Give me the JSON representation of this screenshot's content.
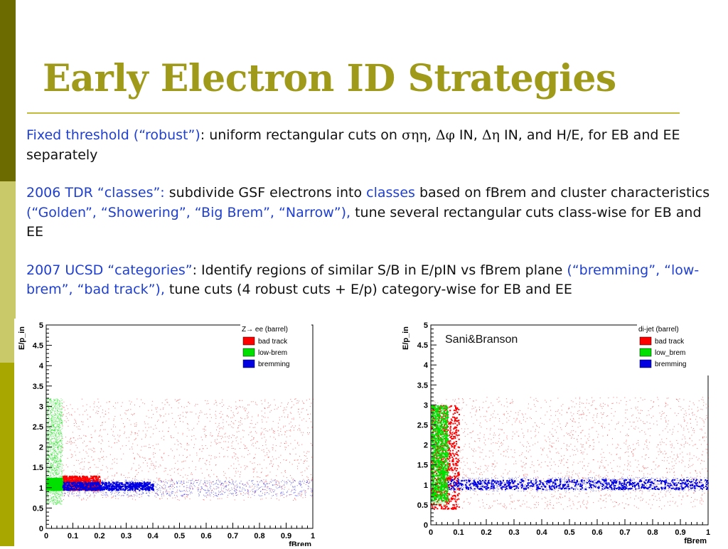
{
  "slide": {
    "title": "Early Electron ID Strategies",
    "paragraphs": [
      {
        "lead": "Fixed threshold (“robust”)",
        "text1": ":  uniform rectangular cuts on ",
        "sym1": "σηη",
        "sep1": ", ",
        "sym2": "Δφ",
        "text2": " IN, ",
        "sym3": "Δη",
        "text3": " IN, and H/E, for EB and EE separately"
      },
      {
        "lead": "2006 TDR “classes”:",
        "text1": "  subdivide GSF electrons into ",
        "kw": "classes",
        "text2": " based on fBrem and cluster characteristics  ",
        "list": "(“Golden”, “Showering”, “Big Brem”, “Narrow”),",
        "text3": " tune several rectangular cuts class-wise for EB and EE"
      },
      {
        "lead": "2007 UCSD “categories”",
        "text1": ": Identify regions of similar S/B in E/pIN vs fBrem plane ",
        "list": "(“bremming”, “low-brem”, “bad track”),",
        "text2": " tune cuts (4 robust cuts + E/p) category-wise for EB and EE"
      }
    ],
    "annotation": "Sani&Branson"
  },
  "colors": {
    "bad_track": "#ff0000",
    "low_brem": "#00e000",
    "bremming": "#0000e0"
  },
  "chart_data": [
    {
      "type": "scatter",
      "legend_title": "Z→ ee (barrel)",
      "xlabel": "fBrem",
      "ylabel": "E/p_in",
      "xlim": [
        0,
        1
      ],
      "ylim": [
        0,
        5
      ],
      "x_ticks": [
        "0",
        "0.1",
        "0.2",
        "0.3",
        "0.4",
        "0.5",
        "0.6",
        "0.7",
        "0.8",
        "0.9",
        "1"
      ],
      "y_ticks": [
        "0",
        "0.5",
        "1",
        "1.5",
        "2",
        "2.5",
        "3",
        "3.5",
        "4",
        "4.5",
        "5"
      ],
      "legend_placement": "top-right",
      "series": [
        {
          "name": "bad track",
          "region": {
            "x": [
              0.06,
              1.0
            ],
            "y": [
              0.7,
              3.2
            ]
          },
          "core": {
            "x": [
              0.06,
              0.2
            ],
            "y": [
              0.95,
              1.3
            ]
          }
        },
        {
          "name": "low-brem",
          "region": {
            "x": [
              0.0,
              0.06
            ],
            "y": [
              0.6,
              3.2
            ]
          },
          "core": {
            "x": [
              0.0,
              0.06
            ],
            "y": [
              0.95,
              1.25
            ]
          }
        },
        {
          "name": "bremming",
          "region": {
            "x": [
              0.06,
              1.0
            ],
            "y": [
              0.8,
              1.2
            ]
          },
          "core": {
            "x": [
              0.06,
              0.4
            ],
            "y": [
              0.95,
              1.15
            ]
          }
        }
      ]
    },
    {
      "type": "scatter",
      "legend_title": "di-jet (barrel)",
      "xlabel": "fBrem",
      "ylabel": "E/p_in",
      "xlim": [
        0,
        1
      ],
      "ylim": [
        0,
        5
      ],
      "x_ticks": [
        "0",
        "0.1",
        "0.2",
        "0.3",
        "0.4",
        "0.5",
        "0.6",
        "0.7",
        "0.8",
        "0.9",
        "1"
      ],
      "y_ticks": [
        "0",
        "0.5",
        "1",
        "1.5",
        "2",
        "2.5",
        "3",
        "3.5",
        "4",
        "4.5",
        "5"
      ],
      "legend_placement": "top-right",
      "series": [
        {
          "name": "bad track",
          "region": {
            "x": [
              0.0,
              1.0
            ],
            "y": [
              0.4,
              3.2
            ]
          },
          "core": {
            "x": [
              0.0,
              0.1
            ],
            "y": [
              0.4,
              3.0
            ]
          }
        },
        {
          "name": "low_brem",
          "region": {
            "x": [
              0.0,
              0.06
            ],
            "y": [
              0.5,
              3.0
            ]
          },
          "core": {
            "x": [
              0.0,
              0.06
            ],
            "y": [
              0.6,
              3.0
            ]
          }
        },
        {
          "name": "bremming",
          "region": {
            "x": [
              0.06,
              1.0
            ],
            "y": [
              0.85,
              1.2
            ]
          },
          "core": {
            "x": [
              0.06,
              1.0
            ],
            "y": [
              0.9,
              1.15
            ]
          }
        }
      ]
    }
  ]
}
